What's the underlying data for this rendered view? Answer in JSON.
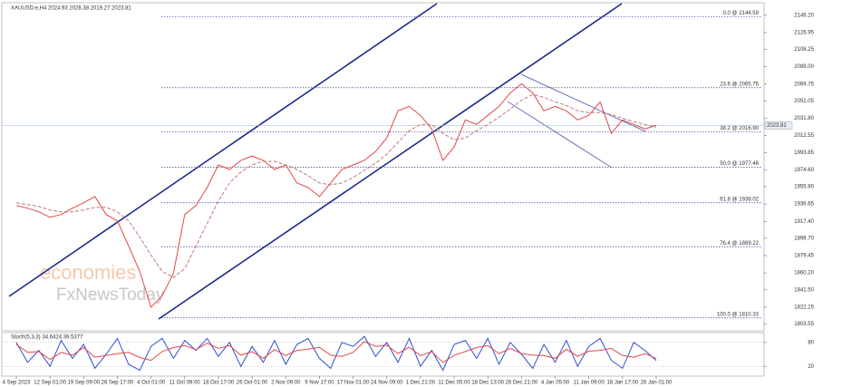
{
  "chart_data": [
    {
      "type": "line",
      "title": "XAUUSD.e,H4  2024.93 2028.38 2019.27 2023.81",
      "categories": [
        "4 Sep 2023",
        null,
        null,
        "12 Sep 01:00",
        null,
        null,
        "19 Sep 09:00",
        null,
        null,
        "26 Sep 17:00",
        null,
        null,
        "4 Oct 01:00",
        null,
        null,
        "11 Oct 09:00",
        null,
        null,
        "18 Oct 17:00",
        null,
        null,
        "26 Oct 01:00",
        null,
        null,
        "2 Nov 09:00",
        null,
        null,
        "9 Nov 17:00",
        null,
        null,
        "17 Nov 01:00",
        null,
        null,
        "24 Nov 09:00",
        null,
        null,
        "1 Dec 21:00",
        null,
        null,
        "11 Dec 05:00",
        null,
        null,
        "18 Dec 13:00",
        null,
        null,
        "26 Dec 21:00",
        null,
        null,
        "4 Jan 05:00",
        null,
        null,
        "11 Jan 09:00",
        null,
        null,
        "18 Jan 17:00",
        null,
        null,
        "26 Jan 01:00"
      ],
      "series": [
        {
          "color": "#e04848",
          "values": [
            1935,
            1932,
            1928,
            1922,
            1925,
            1932,
            1938,
            1945,
            1925,
            1918,
            1890,
            1862,
            1822,
            1835,
            1860,
            1925,
            1935,
            1955,
            1980,
            1975,
            1985,
            1990,
            1985,
            1975,
            1980,
            1960,
            1955,
            1945,
            1960,
            1975,
            1980,
            1985,
            1995,
            2010,
            2040,
            2045,
            2035,
            2020,
            1985,
            2000,
            2030,
            2025,
            2035,
            2045,
            2060,
            2070,
            2060,
            2040,
            2045,
            2040,
            2030,
            2035,
            2050,
            2015,
            2030,
            2025,
            2020,
            2023.81
          ]
        },
        {
          "color": "#c07878",
          "dashed": true,
          "values": [
            1938,
            1936,
            1934,
            1930,
            1928,
            1928,
            1930,
            1933,
            1933,
            1928,
            1918,
            1900,
            1880,
            1862,
            1855,
            1865,
            1890,
            1915,
            1940,
            1960,
            1972,
            1980,
            1984,
            1984,
            1980,
            1975,
            1968,
            1960,
            1958,
            1960,
            1966,
            1974,
            1982,
            1992,
            2005,
            2018,
            2025,
            2025,
            2015,
            2008,
            2010,
            2018,
            2025,
            2033,
            2042,
            2052,
            2058,
            2055,
            2050,
            2046,
            2040,
            2038,
            2038,
            2036,
            2032,
            2028,
            2025,
            2022
          ]
        }
      ],
      "ylim": [
        1798,
        2158
      ],
      "yticks": [
        {
          "value": 2146.2,
          "label": "2146.20"
        },
        2126.95,
        2108.25,
        {
          "value": 2089,
          "label": "2089.00"
        },
        2069.75,
        2051.05,
        {
          "value": 2031.8,
          "label": "2031.80"
        },
        2012.55,
        1993.85,
        {
          "value": 1974.6,
          "label": "1974.60"
        },
        {
          "value": 1955.9,
          "label": "1955.90"
        },
        1936.65,
        {
          "value": 1917.4,
          "label": "1917.40"
        },
        {
          "value": 1898.7,
          "label": "1898.70"
        },
        1879.45,
        {
          "value": 1860.2,
          "label": "1860.20"
        },
        {
          "value": 1841.5,
          "label": "1841.50"
        },
        1822.25,
        1803.55
      ],
      "last_price": 2023.81,
      "annotations": [
        {
          "value": 2144.59,
          "label": "0.0 @ 2144.59"
        },
        {
          "value": 2065.75,
          "label": "23.6 @ 2065.75"
        },
        {
          "value": 2016.9,
          "label": "38.2 @ 2016.90"
        },
        {
          "value": 1977.46,
          "label": "50.0 @ 1977.46"
        },
        {
          "value": 1938.02,
          "label": "61.8 @ 1938.02"
        },
        {
          "value": 1889.22,
          "label": "76.4 @ 1889.22"
        },
        {
          "value": 1810.33,
          "label": "100.0 @ 1810.33"
        }
      ]
    },
    {
      "type": "line",
      "title": "Stoch(5,3,3) 34.6424 39.5377",
      "series": [
        {
          "color": "#3050d0",
          "values": [
            80,
            30,
            60,
            20,
            85,
            40,
            75,
            15,
            50,
            90,
            25,
            10,
            70,
            90,
            40,
            85,
            60,
            90,
            45,
            80,
            20,
            70,
            30,
            85,
            25,
            75,
            90,
            40,
            15,
            80,
            70,
            95,
            45,
            80,
            30,
            90,
            20,
            60,
            10,
            75,
            85,
            40,
            90,
            25,
            80,
            50,
            15,
            75,
            30,
            85,
            20,
            70,
            90,
            35,
            15,
            80,
            60,
            34.64
          ]
        },
        {
          "color": "#e04848",
          "values": [
            75,
            55,
            57,
            37,
            55,
            48,
            67,
            43,
            47,
            52,
            55,
            42,
            35,
            57,
            67,
            72,
            62,
            78,
            65,
            72,
            48,
            57,
            40,
            62,
            47,
            60,
            63,
            68,
            48,
            45,
            55,
            82,
            70,
            73,
            52,
            68,
            47,
            57,
            30,
            48,
            57,
            67,
            72,
            52,
            65,
            52,
            48,
            47,
            40,
            63,
            45,
            58,
            60,
            65,
            47,
            43,
            52,
            39.54
          ]
        }
      ],
      "ylim": [
        0,
        100
      ],
      "yticks": [
        80,
        20
      ]
    }
  ],
  "watermark": {
    "line1": "economies",
    "line2": "FxNewsToday"
  }
}
